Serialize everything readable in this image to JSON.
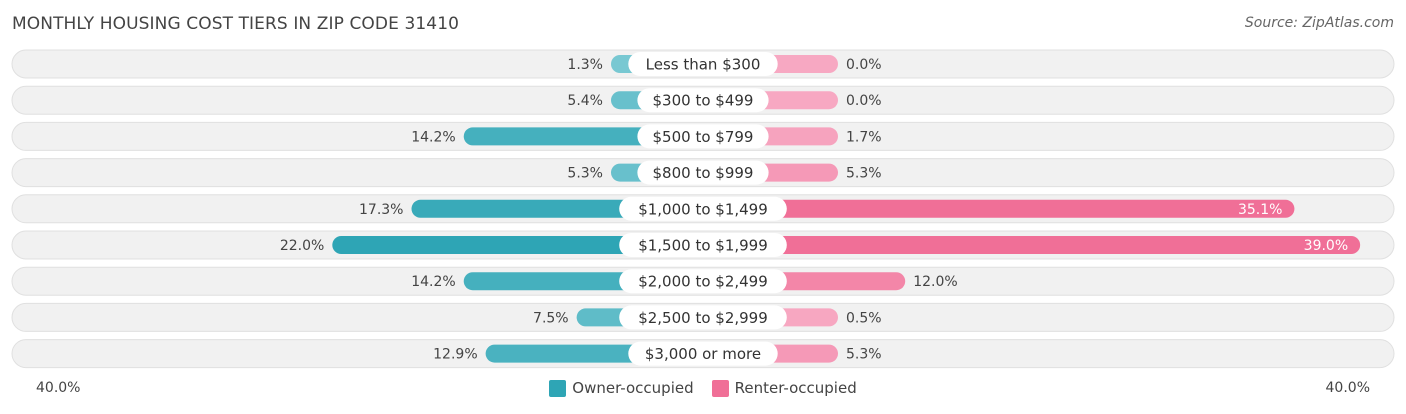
{
  "title": "MONTHLY HOUSING COST TIERS IN ZIP CODE 31410",
  "source": "Source: ZipAtlas.com",
  "colors": {
    "owner_dark": "#2ea5b5",
    "owner_light": "#7dcad4",
    "renter_dark": "#f06f97",
    "renter_light": "#f7a8c2",
    "row_bg": "#f1f1f1",
    "row_border": "#e0e0e0"
  },
  "chart_data": {
    "type": "bar",
    "orientation": "horizontal-diverging",
    "categories": [
      "Less than $300",
      "$300 to $499",
      "$500 to $799",
      "$800 to $999",
      "$1,000 to $1,499",
      "$1,500 to $1,999",
      "$2,000 to $2,499",
      "$2,500 to $2,999",
      "$3,000 or more"
    ],
    "series": [
      {
        "name": "Owner-occupied",
        "values": [
          1.3,
          5.4,
          14.2,
          5.3,
          17.3,
          22.0,
          14.2,
          7.5,
          12.9
        ],
        "labels": [
          "1.3%",
          "5.4%",
          "14.2%",
          "5.3%",
          "17.3%",
          "22.0%",
          "14.2%",
          "7.5%",
          "12.9%"
        ]
      },
      {
        "name": "Renter-occupied",
        "values": [
          0.0,
          0.0,
          1.7,
          5.3,
          35.1,
          39.0,
          12.0,
          0.5,
          5.3
        ],
        "labels": [
          "0.0%",
          "0.0%",
          "1.7%",
          "5.3%",
          "35.1%",
          "39.0%",
          "12.0%",
          "0.5%",
          "5.3%"
        ]
      }
    ],
    "xlim": [
      -40,
      40
    ],
    "axis_min_label": "40.0%",
    "axis_max_label": "40.0%",
    "legend": "bottom-center"
  }
}
